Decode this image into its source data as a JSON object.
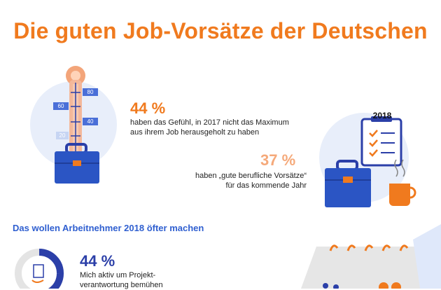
{
  "header": {
    "title": "Die guten Job-Vorsätze der Deutschen"
  },
  "thermometer": {
    "labels": [
      "80",
      "60",
      "40",
      "20"
    ]
  },
  "stat1": {
    "percent": "44 %",
    "text_line1": "haben das Gefühl, in 2017 nicht das Maximum",
    "text_line2": "aus ihrem Job herausgeholt zu haben"
  },
  "calendar_top": {
    "year": "2018"
  },
  "stat2": {
    "percent": "37 %",
    "text_line1": "haben „gute berufliche Vorsätze“",
    "text_line2": "für das kommende Jahr"
  },
  "section": {
    "heading": "Das wollen Arbeitnehmer 2018 öfter machen"
  },
  "stat3": {
    "percent": "44 %",
    "text_line1": "Mich aktiv um Projekt-",
    "text_line2": "verantwortung bemühen"
  },
  "colors": {
    "orange": "#f07a1e",
    "blue": "#2b3fa8",
    "light_blue": "#e4ebf8",
    "heading_blue": "#2f5fd0"
  }
}
